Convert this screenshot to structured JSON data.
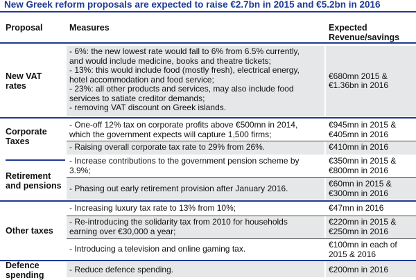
{
  "title": "New Greek reform proposals are expected to raise €2.7bn in 2015 and €5.2bn in 2016",
  "headers": {
    "proposal": "Proposal",
    "measures": "Measures",
    "revenue": "Expected\nRevenue/savings"
  },
  "rows": {
    "vat": {
      "category": "New VAT\nrates",
      "measure": "- 6%: the new lowest rate would fall to 6% from 6.5% currently,\nand would include medicine, books and theatre tickets;\n- 13%: this would include food (mostly fresh), electrical energy,\nhotel accommodation and food service;\n- 23%: all other products and services, may also include food\nservices to satiate creditor demands;\n- removing VAT discount on Greek islands.",
      "revenue": "€680mn 2015 &\n€1.36bn in 2016"
    },
    "corp": {
      "category": "Corporate\nTaxes",
      "measures": [
        "- One-off 12% tax on corporate profits above €500mn in 2014,\nwhich the government expects will capture 1,500 firms;",
        "- Raising overall corporate tax rate to 29% from 26%."
      ],
      "revenues": [
        "€945mn in 2015 &\n€405mn in 2016",
        "€410mn in 2016"
      ]
    },
    "ret": {
      "category": "Retirement\nand pensions",
      "measures": [
        "- Increase  contributions to the government pension scheme by\n3.9%;",
        "- Phasing out early retirement provision after January 2016."
      ],
      "revenues": [
        "€350mn in 2015 &\n€800mn in 2016",
        "€60mn in 2015 &\n€300mn in 2016"
      ]
    },
    "other": {
      "category": "Other taxes",
      "measures": [
        "- Increasing luxury tax rate to 13% from 10%;",
        "- Re-introducing the solidarity tax from 2010 for households\nearning over €30,000 a year;",
        "- Introducing a television and online gaming tax."
      ],
      "revenues": [
        "€47mn in 2016",
        "€220mn in 2015 &\n€250mn in 2016",
        "€100mn in each of\n2015 & 2016"
      ]
    },
    "def": {
      "category": "Defence\nspending",
      "measure": "- Reduce defence spending.",
      "revenue": "€200mn in 2016"
    }
  }
}
